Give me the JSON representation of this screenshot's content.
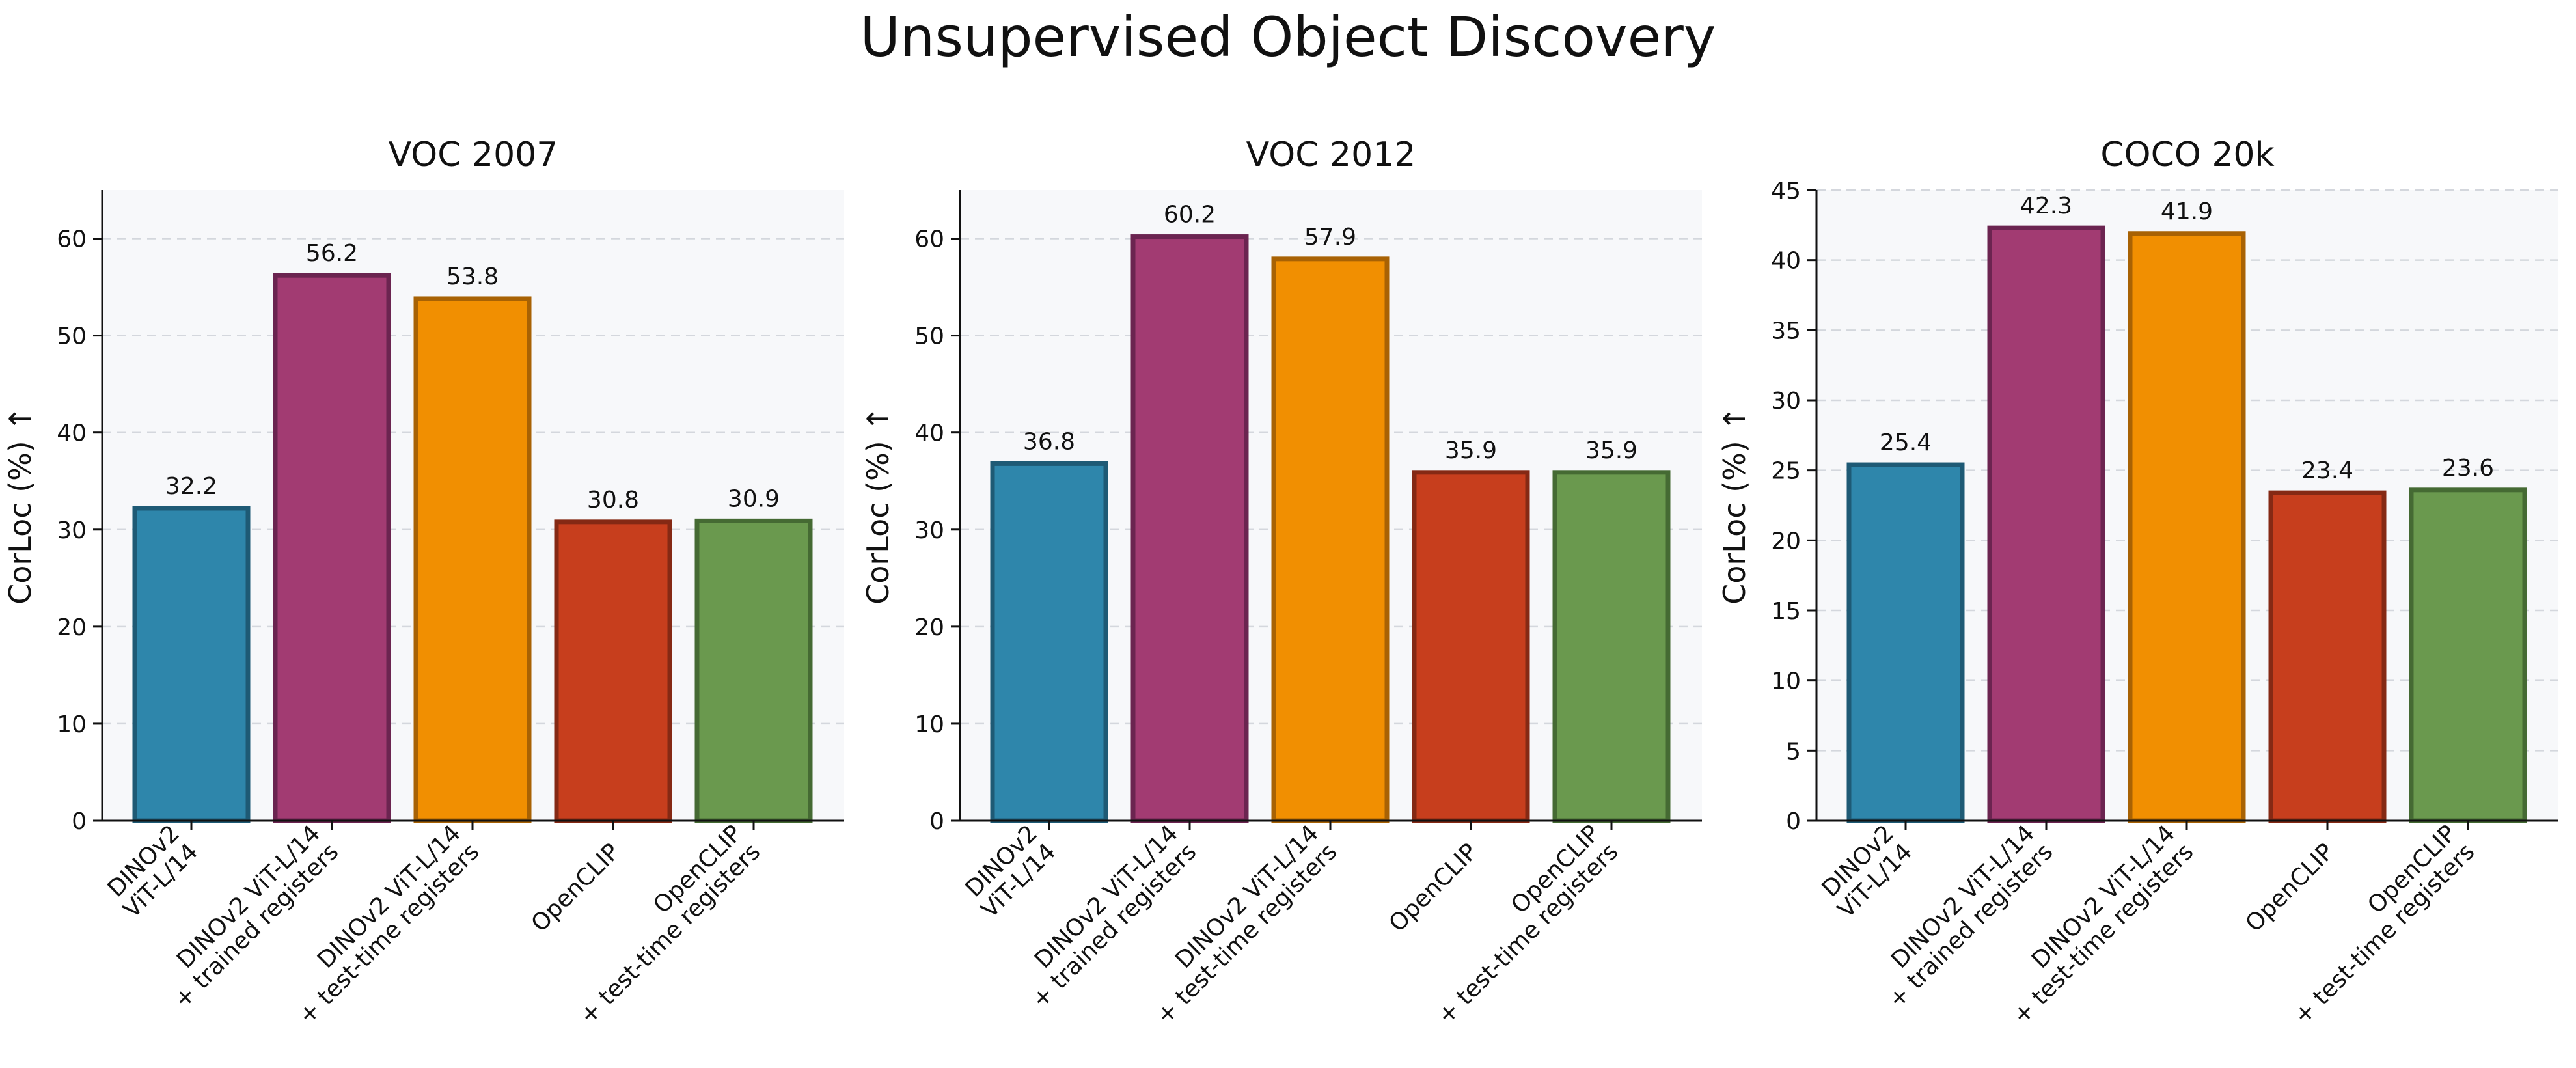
{
  "chart_data": {
    "title": "Unsupervised Object Discovery",
    "type": "bar",
    "ylabel": "CorLoc (%) ↑",
    "categories": [
      [
        "DINOv2",
        "ViT-L/14"
      ],
      [
        "DINOv2 ViT-L/14",
        "+ trained registers"
      ],
      [
        "DINOv2 ViT-L/14",
        "+ test-time registers"
      ],
      [
        "OpenCLIP"
      ],
      [
        "OpenCLIP",
        "+ test-time registers"
      ]
    ],
    "colors": {
      "fill": [
        "#2e86ab",
        "#a23b72",
        "#f18f01",
        "#c73e1d",
        "#6a994e"
      ],
      "edge": [
        "#1e5a75",
        "#6b2450",
        "#a86204",
        "#852914",
        "#456a33"
      ],
      "panel_background": "#f7f8fa"
    },
    "panels": [
      {
        "title": "VOC 2007",
        "values": [
          32.2,
          56.2,
          53.8,
          30.8,
          30.9
        ],
        "labels": [
          "32.2",
          "56.2",
          "53.8",
          "30.8",
          "30.9"
        ],
        "ylim": [
          0,
          65
        ],
        "yticks": [
          0,
          10,
          20,
          30,
          40,
          50,
          60
        ],
        "ytick_labels": [
          "0",
          "10",
          "20",
          "30",
          "40",
          "50",
          "60"
        ]
      },
      {
        "title": "VOC 2012",
        "values": [
          36.8,
          60.2,
          57.9,
          35.9,
          35.9
        ],
        "labels": [
          "36.8",
          "60.2",
          "57.9",
          "35.9",
          "35.9"
        ],
        "ylim": [
          0,
          65
        ],
        "yticks": [
          0,
          10,
          20,
          30,
          40,
          50,
          60
        ],
        "ytick_labels": [
          "0",
          "10",
          "20",
          "30",
          "40",
          "50",
          "60"
        ]
      },
      {
        "title": "COCO 20k",
        "values": [
          25.4,
          42.3,
          41.9,
          23.4,
          23.6
        ],
        "labels": [
          "25.4",
          "42.3",
          "41.9",
          "23.4",
          "23.6"
        ],
        "ylim": [
          0,
          45
        ],
        "yticks": [
          0,
          5,
          10,
          15,
          20,
          25,
          30,
          35,
          40,
          45
        ],
        "ytick_labels": [
          "0",
          "5",
          "10",
          "15",
          "20",
          "25",
          "30",
          "35",
          "40",
          "45"
        ]
      }
    ]
  }
}
